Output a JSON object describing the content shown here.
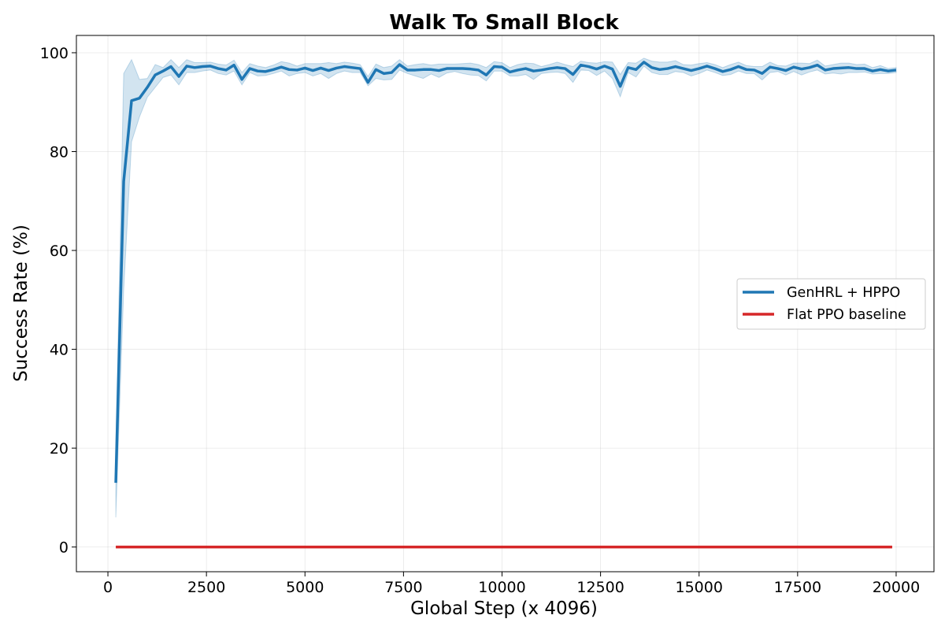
{
  "chart_data": {
    "type": "line",
    "title": "Walk To Small Block",
    "xlabel": "Global Step (x 4096)",
    "ylabel": "Success Rate (%)",
    "xlim": [
      -800,
      20960
    ],
    "ylim": [
      -5,
      103.5
    ],
    "xticks": [
      0,
      2500,
      5000,
      7500,
      10000,
      12500,
      15000,
      17500,
      20000
    ],
    "xtick_labels": [
      "0",
      "2500",
      "5000",
      "7500",
      "10000",
      "12500",
      "15000",
      "17500",
      "20000"
    ],
    "yticks": [
      0,
      20,
      40,
      60,
      80,
      100
    ],
    "ytick_labels": [
      "0",
      "20",
      "40",
      "60",
      "80",
      "100"
    ],
    "grid": true,
    "legend_position": "center-right",
    "series": [
      {
        "name": "GenHRL + HPPO",
        "color": "#1f77b4",
        "band_color": "#1f77b4",
        "x": [
          200,
          400,
          600,
          800,
          1000,
          1200,
          1400,
          1600,
          1800,
          2000,
          2200,
          2400,
          2600,
          2800,
          3000,
          3200,
          3400,
          3600,
          3800,
          4000,
          4200,
          4400,
          4600,
          4800,
          5000,
          5200,
          5400,
          5600,
          5800,
          6000,
          6200,
          6400,
          6600,
          6800,
          7000,
          7200,
          7400,
          7600,
          7800,
          8000,
          8200,
          8400,
          8600,
          8800,
          9000,
          9200,
          9400,
          9600,
          9800,
          10000,
          10200,
          10400,
          10600,
          10800,
          11000,
          11200,
          11400,
          11600,
          11800,
          12000,
          12200,
          12400,
          12600,
          12800,
          13000,
          13200,
          13400,
          13600,
          13800,
          14000,
          14200,
          14400,
          14600,
          14800,
          15000,
          15200,
          15400,
          15600,
          15800,
          16000,
          16200,
          16400,
          16600,
          16800,
          17000,
          17200,
          17400,
          17600,
          17800,
          18000,
          18200,
          18400,
          18600,
          18800,
          19000,
          19200,
          19400,
          19600,
          19800,
          20000
        ],
        "values": [
          13,
          74,
          90.3,
          90.8,
          93,
          95.5,
          96.3,
          97.2,
          95.2,
          97.3,
          97,
          97.2,
          97.3,
          96.8,
          96.5,
          97.5,
          94.6,
          96.8,
          96.3,
          96.2,
          96.6,
          97.1,
          96.6,
          96.5,
          96.9,
          96.4,
          96.9,
          96.4,
          96.9,
          97.2,
          97,
          96.8,
          94,
          96.6,
          95.8,
          96,
          97.6,
          96.5,
          96.5,
          96.6,
          96.6,
          96.4,
          96.8,
          96.8,
          96.8,
          96.7,
          96.5,
          95.5,
          97.2,
          97.1,
          96.1,
          96.5,
          96.8,
          96.3,
          96.5,
          96.8,
          97,
          96.8,
          95.6,
          97.5,
          97.2,
          96.7,
          97.3,
          96.7,
          93.2,
          97,
          96.6,
          98.1,
          97,
          96.6,
          96.8,
          97.2,
          96.8,
          96.4,
          96.8,
          97.3,
          96.8,
          96.2,
          96.6,
          97.2,
          96.6,
          96.5,
          95.8,
          97.1,
          96.8,
          96.4,
          97.1,
          96.7,
          97,
          97.5,
          96.5,
          96.8,
          96.9,
          97,
          96.8,
          96.8,
          96.3,
          96.6,
          96.3,
          96.5
        ],
        "lower": [
          6,
          52,
          82,
          87,
          91,
          93,
          95,
          95.5,
          93.5,
          96,
          96,
          96.3,
          96.5,
          95.8,
          95.5,
          96.3,
          93.5,
          96,
          95.3,
          95.4,
          95.8,
          96.3,
          95.3,
          95.8,
          96,
          95.3,
          95.8,
          94.8,
          95.8,
          96.3,
          96,
          96,
          93.3,
          94.8,
          94.5,
          94.6,
          96.5,
          95.8,
          95.3,
          94.8,
          95.7,
          95,
          95.9,
          96.2,
          95.8,
          95.5,
          95.4,
          94.3,
          96.3,
          96.3,
          95.3,
          95.3,
          95.6,
          94.6,
          95.8,
          96,
          96.1,
          95.8,
          94,
          96.5,
          96.4,
          95.4,
          96.3,
          94.8,
          91.1,
          96,
          95.1,
          97.3,
          96,
          95.6,
          95.6,
          96.2,
          96,
          95.3,
          95.8,
          96.5,
          96,
          95.4,
          95.6,
          96.3,
          95.8,
          95.8,
          94.5,
          96,
          96.2,
          95.5,
          96.2,
          95.5,
          96.1,
          96.5,
          95.7,
          95.9,
          95.7,
          96,
          96,
          96.1,
          95.7,
          95.8,
          95.8,
          96
        ],
        "upper": [
          20,
          95.8,
          98.6,
          94.6,
          94.8,
          97.6,
          97,
          98.6,
          97,
          98.6,
          98,
          98,
          98.1,
          97.7,
          97.5,
          98.5,
          96,
          97.8,
          97.3,
          97,
          97.5,
          98.2,
          97.9,
          97.3,
          97.8,
          97.8,
          97.8,
          98,
          97.8,
          98.1,
          97.9,
          97.6,
          95.2,
          97.7,
          97,
          97.3,
          98.6,
          97.3,
          97.6,
          97.8,
          97.5,
          97.7,
          97.7,
          97.7,
          97.8,
          97.9,
          97.6,
          97,
          98.2,
          98,
          97,
          97.6,
          97.9,
          97.8,
          97.2,
          97.6,
          98.1,
          97.6,
          97.2,
          98.3,
          98,
          97.9,
          98.2,
          98.1,
          95.6,
          98,
          97.9,
          98.9,
          98.3,
          98.1,
          98.1,
          98.4,
          97.6,
          97.5,
          97.8,
          98,
          97.6,
          97,
          97.6,
          98.1,
          97.4,
          97.2,
          97.2,
          98.1,
          97.4,
          97.3,
          97.9,
          97.9,
          97.8,
          98.5,
          97.3,
          97.6,
          97.9,
          97.9,
          97.6,
          97.7,
          97,
          97.4,
          96.8,
          97
        ],
        "band_opacity": 0.2
      },
      {
        "name": "Flat PPO baseline",
        "color": "#d62728",
        "x": [
          200,
          19900
        ],
        "values": [
          0,
          0
        ]
      }
    ]
  }
}
